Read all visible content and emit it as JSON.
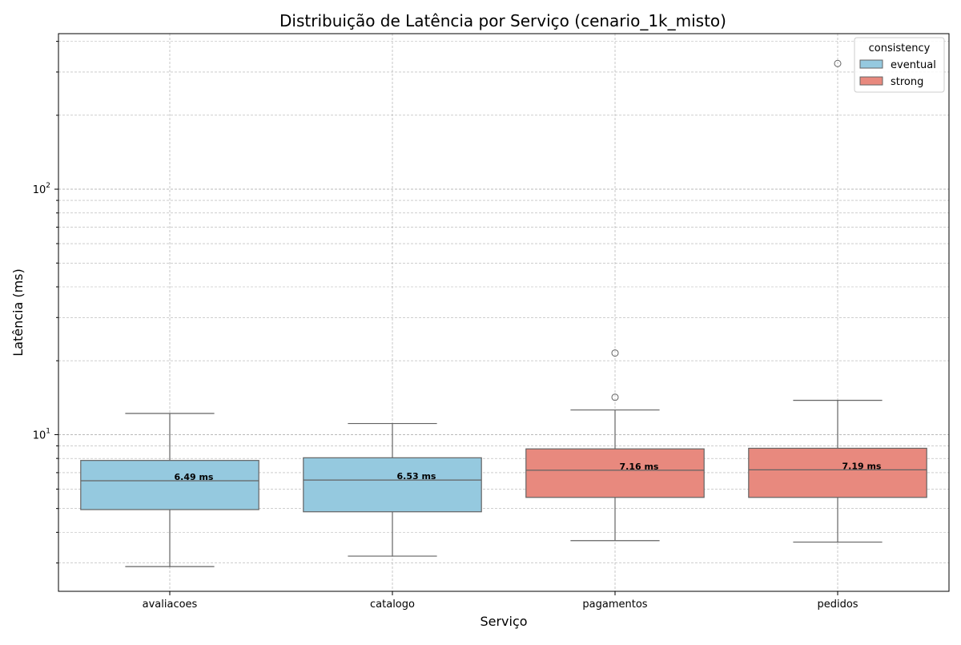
{
  "chart_data": {
    "type": "box",
    "title": "Distribuição de Latência por Serviço (cenario_1k_misto)",
    "xlabel": "Serviço",
    "ylabel": "Latência (ms)",
    "yscale": "log",
    "ylim": [
      2.3,
      430
    ],
    "grid": true,
    "y_major_ticks": [
      {
        "value": 10,
        "base": "10",
        "exp": "1"
      },
      {
        "value": 100,
        "base": "10",
        "exp": "2"
      }
    ],
    "legend": {
      "title": "consistency",
      "placement": "top-right",
      "entries": [
        {
          "label": "eventual",
          "color": "#95c9df"
        },
        {
          "label": "strong",
          "color": "#e8897e"
        }
      ]
    },
    "categories": [
      "avaliacoes",
      "catalogo",
      "pagamentos",
      "pedidos"
    ],
    "boxes": [
      {
        "category": "avaliacoes",
        "consistency": "eventual",
        "whisker_low": 2.9,
        "q1": 4.95,
        "median": 6.49,
        "q3": 7.85,
        "whisker_high": 12.2,
        "outliers": [],
        "median_label": "6.49 ms"
      },
      {
        "category": "catalogo",
        "consistency": "eventual",
        "whisker_low": 3.2,
        "q1": 4.85,
        "median": 6.53,
        "q3": 8.05,
        "whisker_high": 11.1,
        "outliers": [],
        "median_label": "6.53 ms"
      },
      {
        "category": "pagamentos",
        "consistency": "strong",
        "whisker_low": 3.7,
        "q1": 5.55,
        "median": 7.16,
        "q3": 8.75,
        "whisker_high": 12.6,
        "outliers": [
          14.2,
          21.5
        ],
        "median_label": "7.16 ms"
      },
      {
        "category": "pedidos",
        "consistency": "strong",
        "whisker_low": 3.65,
        "q1": 5.55,
        "median": 7.19,
        "q3": 8.8,
        "whisker_high": 13.8,
        "outliers": [
          325
        ],
        "median_label": "7.19 ms"
      }
    ],
    "colors": {
      "eventual": "#95c9df",
      "strong": "#e8897e",
      "box_edge": "#636363",
      "grid": "#b0b0b0"
    }
  }
}
